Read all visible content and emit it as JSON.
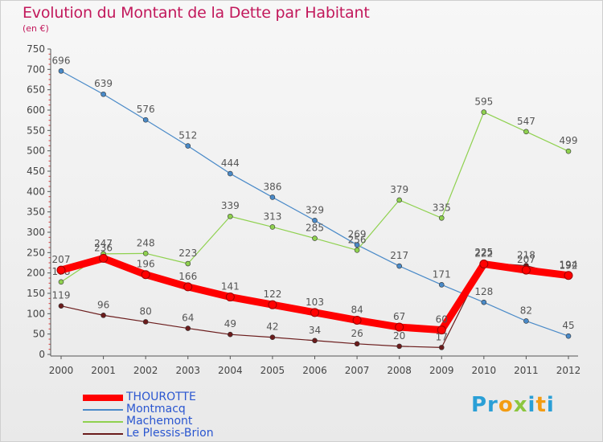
{
  "header": {
    "title": "Evolution du Montant de la Dette par Habitant",
    "subtitle": "(en €)"
  },
  "chart_data": {
    "type": "line",
    "title": "Evolution du Montant de la Dette par Habitant",
    "subtitle": "(en €)",
    "xlabel": "",
    "ylabel": "",
    "x": [
      "2000",
      "2001",
      "2002",
      "2003",
      "2004",
      "2005",
      "2006",
      "2007",
      "2008",
      "2009",
      "2010",
      "2011",
      "2012"
    ],
    "ylim": [
      0,
      750
    ],
    "yticks": [
      0,
      50,
      100,
      150,
      200,
      250,
      300,
      350,
      400,
      450,
      500,
      550,
      600,
      650,
      700,
      750
    ],
    "grid": false,
    "legend_position": "bottom-left",
    "series": [
      {
        "name": "THOUROTTE",
        "color": "#ff0000",
        "values": [
          207,
          236,
          196,
          166,
          141,
          122,
          103,
          84,
          67,
          60,
          222,
          207,
          194
        ]
      },
      {
        "name": "Montmacq",
        "color": "#4a8ac8",
        "values": [
          696,
          639,
          576,
          512,
          444,
          386,
          329,
          269,
          217,
          171,
          128,
          82,
          45
        ]
      },
      {
        "name": "Machemont",
        "color": "#8fd14f",
        "values": [
          178,
          247,
          248,
          223,
          339,
          313,
          285,
          256,
          379,
          335,
          595,
          547,
          499
        ]
      },
      {
        "name": "Le Plessis-Brion",
        "color": "#6b1c1c",
        "values": [
          119,
          96,
          80,
          64,
          49,
          42,
          34,
          26,
          20,
          17,
          225,
          218,
          192
        ]
      }
    ]
  },
  "legend": {
    "items": [
      {
        "label": "THOUROTTE",
        "color": "#ff0000"
      },
      {
        "label": "Montmacq",
        "color": "#4a8ac8"
      },
      {
        "label": "Machemont",
        "color": "#8fd14f"
      },
      {
        "label": "Le Plessis-Brion",
        "color": "#6b1c1c"
      }
    ]
  },
  "logo": {
    "text": "Proxiti"
  }
}
